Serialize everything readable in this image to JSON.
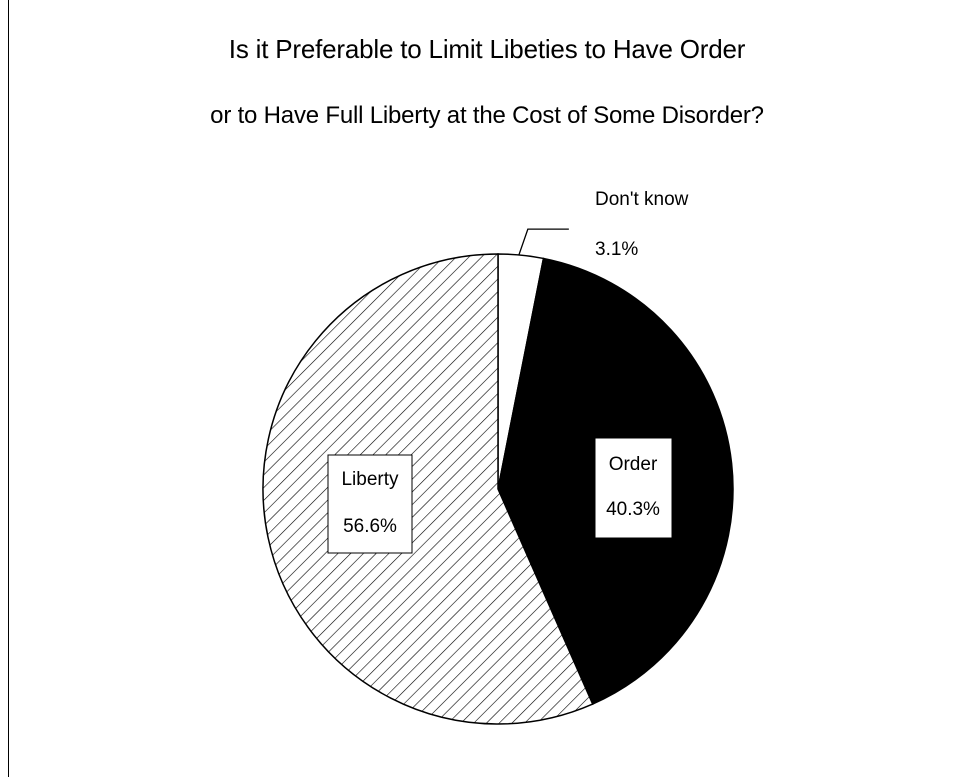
{
  "chart_data": {
    "type": "pie",
    "title": "Is it Preferable to Limit Libeties to Have Order",
    "subtitle": "or to Have Full Liberty at the Cost of Some Disorder?",
    "slices": [
      {
        "label": "Don't know",
        "value": 3.1,
        "value_label": "3.1%",
        "fill": "white"
      },
      {
        "label": "Order",
        "value": 40.3,
        "value_label": "40.3%",
        "fill": "black"
      },
      {
        "label": "Liberty",
        "value": 56.6,
        "value_label": "56.6%",
        "fill": "hatched"
      }
    ],
    "colors": {
      "dont_know": "#ffffff",
      "order": "#000000",
      "liberty_hatch": "#000000",
      "outline": "#000000"
    }
  }
}
